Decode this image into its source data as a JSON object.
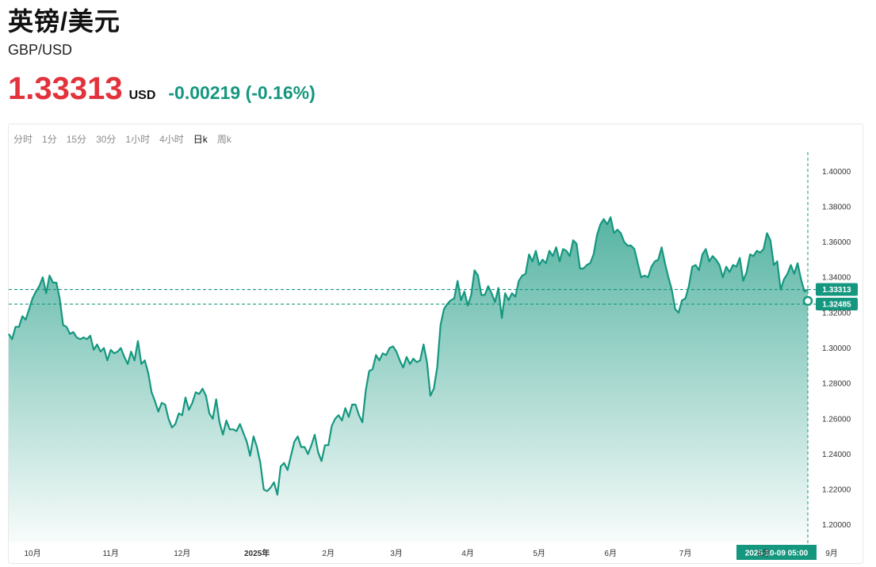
{
  "header": {
    "title": "英镑/美元",
    "subtitle": "GBP/USD",
    "price": "1.33313",
    "currency": "USD",
    "change": "-0.00219 (-0.16%)"
  },
  "colors": {
    "price": "#e2333d",
    "accent": "#15977f"
  },
  "tabs": [
    {
      "label": "分时",
      "active": false
    },
    {
      "label": "1分",
      "active": false
    },
    {
      "label": "15分",
      "active": false
    },
    {
      "label": "30分",
      "active": false
    },
    {
      "label": "1小时",
      "active": false
    },
    {
      "label": "4小时",
      "active": false
    },
    {
      "label": "日k",
      "active": true
    },
    {
      "label": "周k",
      "active": false
    }
  ],
  "chart_data": {
    "type": "area",
    "ylim": [
      1.19,
      1.41
    ],
    "yticks": [
      "1.40000",
      "1.38000",
      "1.36000",
      "1.34000",
      "1.32000",
      "1.30000",
      "1.28000",
      "1.26000",
      "1.24000",
      "1.22000",
      "1.20000"
    ],
    "ytick_values": [
      1.4,
      1.38,
      1.36,
      1.34,
      1.32,
      1.3,
      1.28,
      1.26,
      1.24,
      1.22,
      1.2
    ],
    "xticks": [
      {
        "label": "10月",
        "index": 7,
        "bold": false
      },
      {
        "label": "11月",
        "index": 30,
        "bold": false
      },
      {
        "label": "12月",
        "index": 51,
        "bold": false
      },
      {
        "label": "2025年",
        "index": 73,
        "bold": true
      },
      {
        "label": "2月",
        "index": 94,
        "bold": false
      },
      {
        "label": "3月",
        "index": 114,
        "bold": false
      },
      {
        "label": "4月",
        "index": 135,
        "bold": false
      },
      {
        "label": "5月",
        "index": 156,
        "bold": false
      },
      {
        "label": "6月",
        "index": 177,
        "bold": false
      },
      {
        "label": "7月",
        "index": 199,
        "bold": false
      },
      {
        "label": "8月",
        "index": 222,
        "bold": false
      },
      {
        "label": "9月",
        "index": 242,
        "bold": false
      }
    ],
    "current_price_label": "1.33313",
    "current_price": 1.33313,
    "reference_label": "1.32485",
    "reference_price": 1.32485,
    "crosshair_date": "2025-10-09 05:00",
    "values": [
      1.308,
      1.305,
      1.312,
      1.312,
      1.318,
      1.316,
      1.322,
      1.328,
      1.332,
      1.335,
      1.34,
      1.331,
      1.341,
      1.337,
      1.337,
      1.328,
      1.313,
      1.312,
      1.308,
      1.309,
      1.306,
      1.305,
      1.306,
      1.305,
      1.307,
      1.299,
      1.302,
      1.298,
      1.3,
      1.293,
      1.299,
      1.297,
      1.298,
      1.3,
      1.295,
      1.291,
      1.298,
      1.293,
      1.304,
      1.291,
      1.293,
      1.286,
      1.275,
      1.27,
      1.264,
      1.269,
      1.268,
      1.26,
      1.255,
      1.257,
      1.263,
      1.262,
      1.272,
      1.265,
      1.269,
      1.275,
      1.274,
      1.277,
      1.273,
      1.263,
      1.26,
      1.271,
      1.258,
      1.251,
      1.259,
      1.254,
      1.254,
      1.253,
      1.257,
      1.252,
      1.247,
      1.239,
      1.25,
      1.244,
      1.235,
      1.22,
      1.219,
      1.221,
      1.224,
      1.217,
      1.233,
      1.235,
      1.231,
      1.239,
      1.247,
      1.25,
      1.244,
      1.244,
      1.24,
      1.245,
      1.251,
      1.241,
      1.236,
      1.245,
      1.245,
      1.256,
      1.26,
      1.262,
      1.259,
      1.266,
      1.261,
      1.268,
      1.268,
      1.262,
      1.258,
      1.276,
      1.287,
      1.288,
      1.296,
      1.293,
      1.297,
      1.296,
      1.3,
      1.301,
      1.298,
      1.293,
      1.289,
      1.295,
      1.291,
      1.294,
      1.292,
      1.293,
      1.302,
      1.292,
      1.273,
      1.277,
      1.289,
      1.313,
      1.322,
      1.325,
      1.327,
      1.328,
      1.338,
      1.327,
      1.332,
      1.324,
      1.33,
      1.344,
      1.341,
      1.33,
      1.33,
      1.335,
      1.331,
      1.326,
      1.334,
      1.317,
      1.331,
      1.327,
      1.331,
      1.329,
      1.338,
      1.341,
      1.342,
      1.353,
      1.349,
      1.355,
      1.347,
      1.35,
      1.348,
      1.355,
      1.352,
      1.357,
      1.349,
      1.356,
      1.355,
      1.352,
      1.361,
      1.359,
      1.345,
      1.345,
      1.347,
      1.348,
      1.353,
      1.364,
      1.37,
      1.373,
      1.37,
      1.374,
      1.365,
      1.367,
      1.365,
      1.36,
      1.358,
      1.358,
      1.356,
      1.348,
      1.34,
      1.341,
      1.34,
      1.346,
      1.349,
      1.35,
      1.357,
      1.348,
      1.34,
      1.333,
      1.322,
      1.32,
      1.327,
      1.328,
      1.335,
      1.346,
      1.347,
      1.344,
      1.353,
      1.356,
      1.349,
      1.352,
      1.35,
      1.347,
      1.34,
      1.346,
      1.343,
      1.347,
      1.346,
      1.351,
      1.338,
      1.343,
      1.353,
      1.352,
      1.355,
      1.354,
      1.356,
      1.365,
      1.361,
      1.347,
      1.349,
      1.333,
      1.339,
      1.342,
      1.347,
      1.342,
      1.348,
      1.339,
      1.332,
      1.33313
    ]
  }
}
